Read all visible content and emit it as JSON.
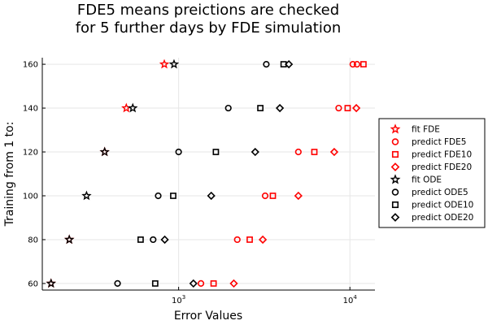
{
  "chart_data": {
    "type": "scatter",
    "title_lines": [
      "FDE5 means preictions are checked",
      "for 5 further days by FDE simulation"
    ],
    "xlabel": "Error Values",
    "ylabel": "Training from 1 to:",
    "xscale": "log",
    "xlim": [
      160,
      14000
    ],
    "ylim": [
      57,
      163
    ],
    "x_ticks": [
      {
        "value": 1000,
        "base": "10",
        "exp": "3"
      },
      {
        "value": 10000,
        "base": "10",
        "exp": "4"
      }
    ],
    "y_ticks": [
      60,
      80,
      100,
      120,
      140,
      160
    ],
    "grid": true,
    "legend_position": "right",
    "series": [
      {
        "name": "fit FDE",
        "marker": "star",
        "color": "#ff0000",
        "x": [
          180,
          230,
          370,
          495,
          825
        ],
        "y": [
          60,
          80,
          120,
          140,
          160
        ]
      },
      {
        "name": "predict FDE5",
        "marker": "circle",
        "color": "#ff0000",
        "x": [
          1350,
          2200,
          3200,
          5000,
          8600,
          10400,
          11000
        ],
        "y": [
          60,
          80,
          100,
          120,
          140,
          160,
          160
        ]
      },
      {
        "name": "predict FDE10",
        "marker": "square",
        "color": "#ff0000",
        "x": [
          1600,
          2600,
          3550,
          6200,
          9700,
          12000
        ],
        "y": [
          60,
          80,
          100,
          120,
          140,
          160
        ]
      },
      {
        "name": "predict FDE20",
        "marker": "diamond",
        "color": "#ff0000",
        "x": [
          2100,
          3100,
          5000,
          8100,
          10900
        ],
        "y": [
          60,
          80,
          100,
          120,
          140
        ]
      },
      {
        "name": "fit ODE",
        "marker": "star",
        "color": "#000000",
        "x": [
          180,
          230,
          290,
          370,
          540,
          940
        ],
        "y": [
          60,
          80,
          100,
          120,
          140,
          160
        ]
      },
      {
        "name": "predict ODE5",
        "marker": "circle",
        "color": "#000000",
        "x": [
          440,
          710,
          760,
          1000,
          1950,
          3250
        ],
        "y": [
          60,
          80,
          100,
          120,
          140,
          160
        ]
      },
      {
        "name": "predict ODE10",
        "marker": "square",
        "color": "#000000",
        "x": [
          730,
          600,
          930,
          1650,
          3000,
          4100
        ],
        "y": [
          60,
          80,
          100,
          120,
          140,
          160
        ]
      },
      {
        "name": "predict ODE20",
        "marker": "diamond",
        "color": "#000000",
        "x": [
          1220,
          830,
          1550,
          2800,
          3900,
          4400
        ],
        "y": [
          60,
          80,
          100,
          120,
          140,
          160
        ]
      }
    ]
  }
}
